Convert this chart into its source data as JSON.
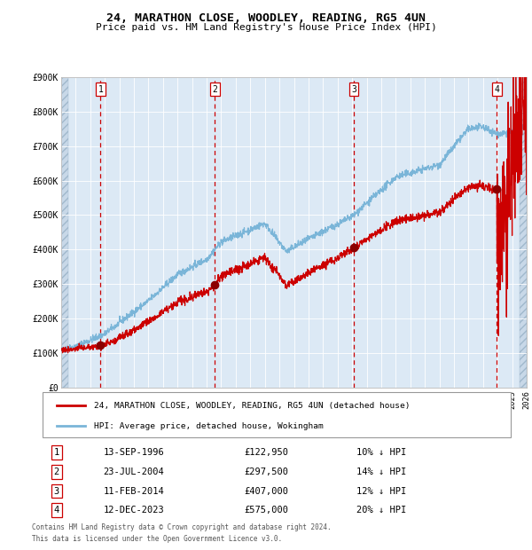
{
  "title": "24, MARATHON CLOSE, WOODLEY, READING, RG5 4UN",
  "subtitle": "Price paid vs. HM Land Registry's House Price Index (HPI)",
  "sale_dates_num": [
    1996.71,
    2004.56,
    2014.12,
    2023.95
  ],
  "sale_prices": [
    122950,
    297500,
    407000,
    575000
  ],
  "sale_labels": [
    "1",
    "2",
    "3",
    "4"
  ],
  "table_dates": [
    "13-SEP-1996",
    "23-JUL-2004",
    "11-FEB-2014",
    "12-DEC-2023"
  ],
  "table_prices": [
    "£122,950",
    "£297,500",
    "£407,000",
    "£575,000"
  ],
  "table_hpi": [
    "10% ↓ HPI",
    "14% ↓ HPI",
    "12% ↓ HPI",
    "20% ↓ HPI"
  ],
  "hpi_legend": "HPI: Average price, detached house, Wokingham",
  "house_legend": "24, MARATHON CLOSE, WOODLEY, READING, RG5 4UN (detached house)",
  "footnote1": "Contains HM Land Registry data © Crown copyright and database right 2024.",
  "footnote2": "This data is licensed under the Open Government Licence v3.0.",
  "xmin": 1994.0,
  "xmax": 2026.0,
  "ymin": 0,
  "ymax": 900000,
  "yticks": [
    0,
    100000,
    200000,
    300000,
    400000,
    500000,
    600000,
    700000,
    800000,
    900000
  ],
  "ytick_labels": [
    "£0",
    "£100K",
    "£200K",
    "£300K",
    "£400K",
    "£500K",
    "£600K",
    "£700K",
    "£800K",
    "£900K"
  ],
  "hpi_color": "#7ab5d8",
  "sale_color": "#cc0000",
  "dot_color": "#8b0000",
  "background_color": "#dce9f5",
  "hatch_bg_color": "#c8d8e8",
  "grid_color": "#ffffff",
  "vline_sale_color": "#cc0000",
  "fig_width": 6.0,
  "fig_height": 6.2,
  "dpi": 100
}
